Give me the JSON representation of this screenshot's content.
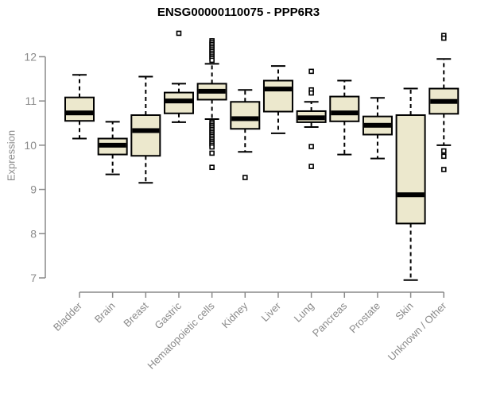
{
  "chart_data": {
    "type": "boxplot",
    "title": "ENSG00000110075 - PPP6R3",
    "ylabel": "Expression",
    "xlabel": "",
    "ylim": [
      7,
      12
    ],
    "yticks": [
      "7",
      "8",
      "9",
      "10",
      "11",
      "12"
    ],
    "grid": "off",
    "legend": "none",
    "colors": {
      "box_fill": "#ece8cd",
      "box_stroke": "#000000",
      "axis_text": "#8a8a8a",
      "axis_line": "#8a8a8a",
      "title_text": "#000000"
    },
    "categories": [
      "Bladder",
      "Brain",
      "Breast",
      "Gastric",
      "Hematopoietic cells",
      "Kidney",
      "Liver",
      "Lung",
      "Pancreas",
      "Prostate",
      "Skin",
      "Unknown / Other"
    ],
    "boxes": [
      {
        "category": "Bladder",
        "whisker_low": 10.15,
        "q1": 10.55,
        "median": 10.73,
        "q3": 11.08,
        "whisker_high": 11.59,
        "outliers": []
      },
      {
        "category": "Brain",
        "whisker_low": 9.34,
        "q1": 9.79,
        "median": 10.0,
        "q3": 10.15,
        "whisker_high": 10.53,
        "outliers": []
      },
      {
        "category": "Breast",
        "whisker_low": 9.15,
        "q1": 9.76,
        "median": 10.33,
        "q3": 10.68,
        "whisker_high": 11.55,
        "outliers": []
      },
      {
        "category": "Gastric",
        "whisker_low": 10.52,
        "q1": 10.72,
        "median": 11.0,
        "q3": 11.19,
        "whisker_high": 11.39,
        "outliers": [
          12.53
        ]
      },
      {
        "category": "Hematopoietic cells",
        "whisker_low": 10.59,
        "q1": 11.03,
        "median": 11.22,
        "q3": 11.39,
        "whisker_high": 11.84,
        "outliers": [
          12.36,
          12.32,
          12.28,
          12.24,
          12.2,
          12.16,
          12.12,
          12.08,
          12.04,
          12.0,
          11.96,
          11.92,
          10.52,
          10.48,
          10.44,
          10.4,
          10.36,
          10.32,
          10.28,
          10.24,
          10.2,
          10.16,
          10.12,
          10.08,
          10.04,
          10.0,
          9.96,
          9.82,
          9.5
        ]
      },
      {
        "category": "Kidney",
        "whisker_low": 9.85,
        "q1": 10.37,
        "median": 10.6,
        "q3": 10.98,
        "whisker_high": 11.25,
        "outliers": [
          9.27
        ]
      },
      {
        "category": "Liver",
        "whisker_low": 10.27,
        "q1": 10.76,
        "median": 11.27,
        "q3": 11.46,
        "whisker_high": 11.79,
        "outliers": []
      },
      {
        "category": "Lung",
        "whisker_low": 10.41,
        "q1": 10.52,
        "median": 10.62,
        "q3": 10.77,
        "whisker_high": 10.98,
        "outliers": [
          11.67,
          11.25,
          11.18,
          9.97,
          9.52
        ]
      },
      {
        "category": "Pancreas",
        "whisker_low": 9.79,
        "q1": 10.54,
        "median": 10.73,
        "q3": 11.1,
        "whisker_high": 11.46,
        "outliers": []
      },
      {
        "category": "Prostate",
        "whisker_low": 9.7,
        "q1": 10.24,
        "median": 10.45,
        "q3": 10.65,
        "whisker_high": 11.07,
        "outliers": []
      },
      {
        "category": "Skin",
        "whisker_low": 6.95,
        "q1": 8.23,
        "median": 8.88,
        "q3": 10.68,
        "whisker_high": 11.28,
        "outliers": []
      },
      {
        "category": "Unknown / Other",
        "whisker_low": 10.0,
        "q1": 10.71,
        "median": 10.99,
        "q3": 11.28,
        "whisker_high": 11.95,
        "outliers": [
          12.48,
          12.42,
          9.87,
          9.75,
          9.45
        ]
      }
    ]
  }
}
